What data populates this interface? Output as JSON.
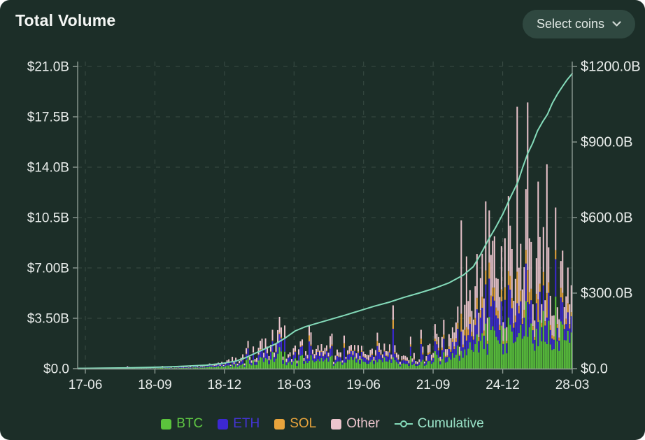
{
  "header": {
    "title": "Total Volume",
    "select_coins_label": "Select coins"
  },
  "colors": {
    "background": "#1c2e28",
    "button_bg": "#2f4840",
    "text": "#e9edeb",
    "axis_line": "#8d9a93",
    "grid": "#5f7069",
    "btc": "#5bc43c",
    "eth": "#3c28d2",
    "sol": "#e9a43c",
    "other": "#ecc5cd",
    "cumulative": "#84dbba",
    "legend_text_btc": "#5fc743",
    "legend_text_eth": "#4434d6",
    "legend_text_sol": "#e9a43c",
    "legend_text_other": "#ecc5cd",
    "legend_text_cumulative": "#9be4c9"
  },
  "chart_data": {
    "type": "bar",
    "subtype": "stacked-bars-with-cumulative-line-overlay",
    "title": "Total Volume",
    "grid": "dashed, horizontal and vertical",
    "legend_position": "bottom-center",
    "x_tick_labels": [
      "17-06",
      "18-09",
      "18-12",
      "18-03",
      "19-06",
      "21-09",
      "24-12",
      "28-03"
    ],
    "left_axis": {
      "tick_labels": [
        "$21.0B",
        "$17.5B",
        "$14.0B",
        "$10.5B",
        "$7.00B",
        "$3.50B",
        "$0.0"
      ],
      "tick_values": [
        21,
        17.5,
        14,
        10.5,
        7,
        3.5,
        0
      ],
      "range": [
        0,
        21
      ],
      "unit": "$B"
    },
    "right_axis": {
      "tick_labels": [
        "$1200.0B",
        "$900.0B",
        "$600.0B",
        "$300.0B",
        "$0.0"
      ],
      "tick_values": [
        1200,
        900,
        600,
        300,
        0
      ],
      "range": [
        0,
        1200
      ],
      "unit": "$B"
    },
    "legend": [
      {
        "label": "BTC",
        "marker": "square",
        "color": "#5bc43c",
        "text_color": "#5fc743"
      },
      {
        "label": "ETH",
        "marker": "square",
        "color": "#3c28d2",
        "text_color": "#4434d6"
      },
      {
        "label": "SOL",
        "marker": "square",
        "color": "#e9a43c",
        "text_color": "#e9a43c"
      },
      {
        "label": "Other",
        "marker": "square",
        "color": "#ecc5cd",
        "text_color": "#ecc5cd"
      },
      {
        "label": "Cumulative",
        "marker": "line-dot",
        "color": "#84dbba",
        "text_color": "#9be4c9"
      }
    ],
    "bars": {
      "note": "weekly stacked volume bars; totals in $B estimated from pixels; f = fraction of x-axis width",
      "count": 283,
      "seed": 42,
      "envelope_keyframes": [
        [
          0.0,
          0.02
        ],
        [
          0.06,
          0.03
        ],
        [
          0.09,
          0.05
        ],
        [
          0.1,
          0.16
        ],
        [
          0.11,
          0.05
        ],
        [
          0.15,
          0.07
        ],
        [
          0.19,
          0.1
        ],
        [
          0.23,
          0.16
        ],
        [
          0.27,
          0.28
        ],
        [
          0.3,
          0.45
        ],
        [
          0.33,
          0.75
        ],
        [
          0.36,
          1.1
        ],
        [
          0.39,
          1.6
        ],
        [
          0.41,
          1.9
        ],
        [
          0.43,
          1.5
        ],
        [
          0.46,
          1.2
        ],
        [
          0.5,
          1.0
        ],
        [
          0.54,
          1.0
        ],
        [
          0.58,
          1.05
        ],
        [
          0.62,
          1.15
        ],
        [
          0.66,
          1.05
        ],
        [
          0.7,
          1.2
        ],
        [
          0.73,
          1.6
        ],
        [
          0.76,
          2.4
        ],
        [
          0.79,
          3.6
        ],
        [
          0.81,
          5.0
        ],
        [
          0.83,
          5.8
        ],
        [
          0.85,
          5.2
        ],
        [
          0.87,
          6.4
        ],
        [
          0.89,
          7.2
        ],
        [
          0.91,
          6.4
        ],
        [
          0.93,
          5.8
        ],
        [
          0.95,
          6.2
        ],
        [
          0.97,
          5.2
        ],
        [
          1.0,
          4.2
        ]
      ],
      "spikes": [
        [
          0.395,
          2.7
        ],
        [
          0.408,
          3.6
        ],
        [
          0.42,
          3.0
        ],
        [
          0.468,
          3.0
        ],
        [
          0.54,
          2.3
        ],
        [
          0.605,
          2.5
        ],
        [
          0.64,
          4.4
        ],
        [
          0.695,
          2.7
        ],
        [
          0.724,
          3.1
        ],
        [
          0.742,
          3.4
        ],
        [
          0.776,
          10.3
        ],
        [
          0.787,
          7.8
        ],
        [
          0.832,
          11.0
        ],
        [
          0.845,
          9.2
        ],
        [
          0.873,
          12.0
        ],
        [
          0.889,
          18.2
        ],
        [
          0.913,
          18.5
        ],
        [
          0.931,
          13.0
        ],
        [
          0.95,
          14.2
        ],
        [
          0.967,
          11.2
        ],
        [
          0.984,
          8.2
        ]
      ],
      "composition_keyframes": {
        "btc": [
          [
            0,
            0.45
          ],
          [
            0.35,
            0.38
          ],
          [
            0.55,
            0.44
          ],
          [
            0.72,
            0.36
          ],
          [
            0.82,
            0.3
          ],
          [
            0.9,
            0.34
          ],
          [
            1,
            0.42
          ]
        ],
        "eth": [
          [
            0,
            0.25
          ],
          [
            0.35,
            0.3
          ],
          [
            0.55,
            0.27
          ],
          [
            0.72,
            0.26
          ],
          [
            0.82,
            0.22
          ],
          [
            1,
            0.2
          ]
        ],
        "sol": [
          [
            0,
            0.01
          ],
          [
            0.5,
            0.03
          ],
          [
            0.7,
            0.07
          ],
          [
            0.85,
            0.08
          ],
          [
            1,
            0.07
          ]
        ]
      },
      "big_spike_composition": {
        "btc": 0.12,
        "eth": 0.13,
        "sol": 0.12,
        "other": 0.63
      },
      "small_spike_composition": {
        "btc": 0.18,
        "eth": 0.45,
        "sol": 0.14,
        "other": 0.23
      }
    },
    "cumulative": {
      "unit": "$B",
      "points": [
        [
          0.0,
          1
        ],
        [
          0.05,
          2
        ],
        [
          0.1,
          3
        ],
        [
          0.14,
          5
        ],
        [
          0.18,
          7
        ],
        [
          0.22,
          10
        ],
        [
          0.26,
          14
        ],
        [
          0.29,
          20
        ],
        [
          0.32,
          30
        ],
        [
          0.34,
          44
        ],
        [
          0.36,
          62
        ],
        [
          0.38,
          80
        ],
        [
          0.4,
          98
        ],
        [
          0.42,
          122
        ],
        [
          0.44,
          150
        ],
        [
          0.46,
          166
        ],
        [
          0.48,
          178
        ],
        [
          0.51,
          195
        ],
        [
          0.54,
          212
        ],
        [
          0.57,
          230
        ],
        [
          0.6,
          248
        ],
        [
          0.63,
          264
        ],
        [
          0.66,
          283
        ],
        [
          0.69,
          300
        ],
        [
          0.72,
          318
        ],
        [
          0.75,
          340
        ],
        [
          0.78,
          372
        ],
        [
          0.8,
          405
        ],
        [
          0.815,
          455
        ],
        [
          0.83,
          510
        ],
        [
          0.845,
          560
        ],
        [
          0.86,
          615
        ],
        [
          0.875,
          680
        ],
        [
          0.89,
          740
        ],
        [
          0.9,
          800
        ],
        [
          0.91,
          855
        ],
        [
          0.92,
          895
        ],
        [
          0.93,
          945
        ],
        [
          0.94,
          980
        ],
        [
          0.95,
          1010
        ],
        [
          0.96,
          1055
        ],
        [
          0.97,
          1090
        ],
        [
          0.98,
          1120
        ],
        [
          0.99,
          1148
        ],
        [
          1.0,
          1172
        ]
      ]
    }
  }
}
